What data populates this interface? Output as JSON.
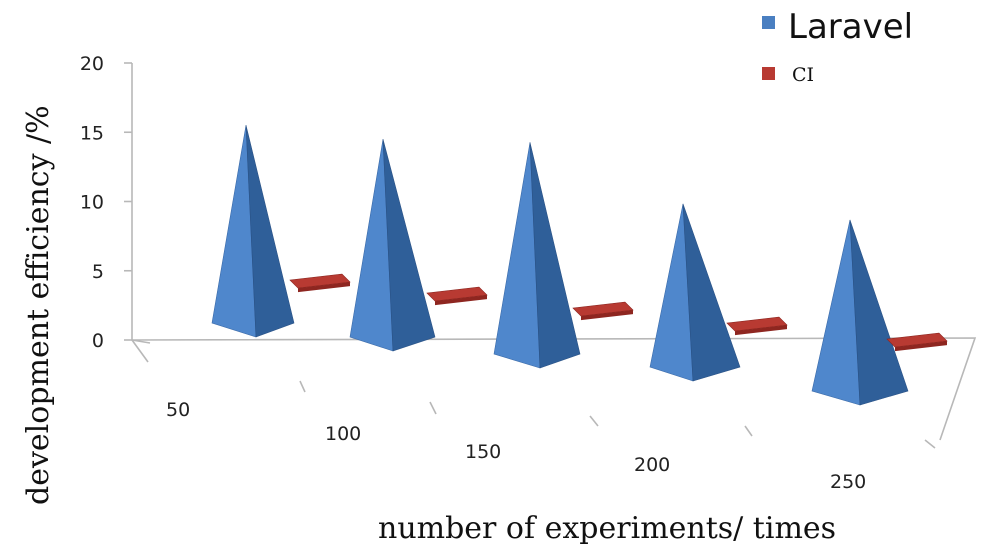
{
  "chart_data": {
    "type": "bar",
    "style": "3d-pyramid",
    "categories": [
      "50",
      "100",
      "150",
      "200",
      "250"
    ],
    "series": [
      {
        "name": "Laravel",
        "values": [
          15,
          15,
          16,
          12.5,
          13
        ],
        "color": "#4a7fc1"
      },
      {
        "name": "CI",
        "values": [
          0.5,
          0.5,
          0.5,
          0.5,
          0.5
        ],
        "color": "#b83a32"
      }
    ],
    "yticks": [
      "0",
      "5",
      "10",
      "15",
      "20"
    ],
    "ylim": [
      0,
      20
    ],
    "xlabel": "number of experiments/ times",
    "ylabel": "development efficiency /%",
    "legend_position": "top-right"
  }
}
